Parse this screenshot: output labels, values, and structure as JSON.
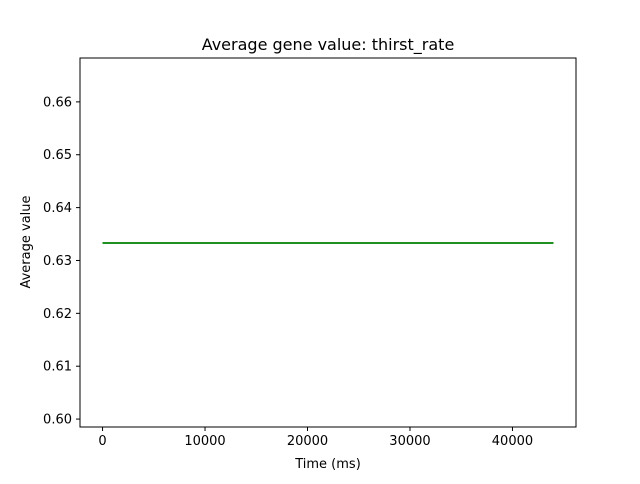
{
  "chart_data": {
    "type": "line",
    "title": "Average gene value: thirst_rate",
    "xlabel": "Time (ms)",
    "ylabel": "Average value",
    "xlim": [
      -2200,
      46200
    ],
    "ylim": [
      0.5985,
      0.6683
    ],
    "xticks": [
      0,
      10000,
      20000,
      30000,
      40000
    ],
    "xtick_labels": [
      "0",
      "10000",
      "20000",
      "30000",
      "40000"
    ],
    "yticks": [
      0.6,
      0.61,
      0.62,
      0.63,
      0.64,
      0.65,
      0.66
    ],
    "ytick_labels": [
      "0.60",
      "0.61",
      "0.62",
      "0.63",
      "0.64",
      "0.65",
      "0.66"
    ],
    "grid": false,
    "legend": "none",
    "series": [
      {
        "color": "#008000",
        "x": [
          0,
          44000
        ],
        "y": [
          0.6333,
          0.6333
        ]
      }
    ]
  }
}
